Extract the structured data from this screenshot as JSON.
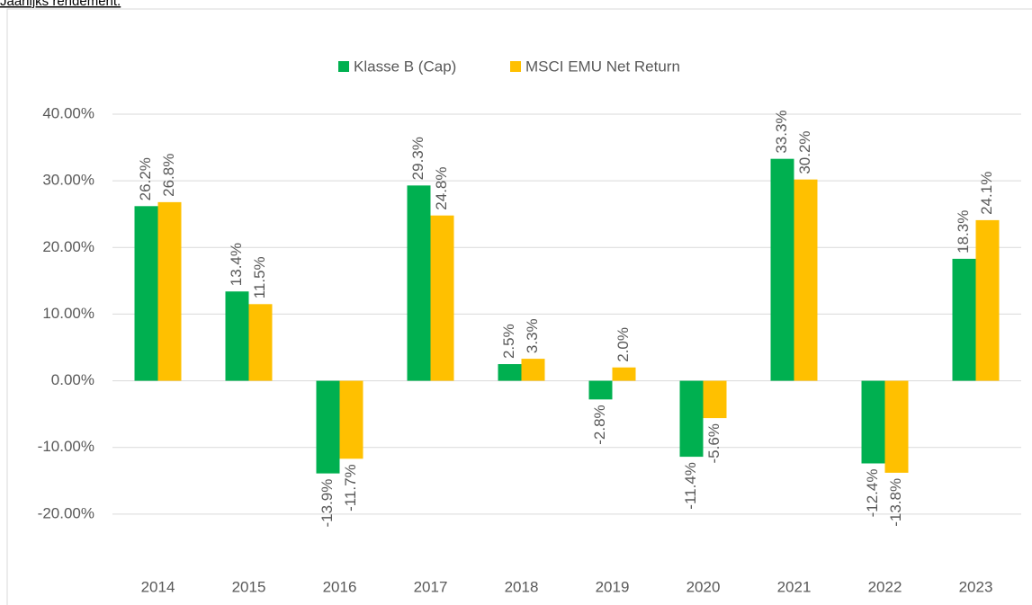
{
  "chart_data": {
    "type": "bar",
    "title": "Jaarlijks rendement.",
    "categories": [
      "2014",
      "2015",
      "2016",
      "2017",
      "2018",
      "2019",
      "2020",
      "2021",
      "2022",
      "2023"
    ],
    "series": [
      {
        "name": "Klasse B (Cap)",
        "color": "#00b050",
        "values": [
          26.2,
          13.4,
          -13.9,
          29.3,
          2.5,
          -2.8,
          -11.4,
          33.3,
          -12.4,
          18.3
        ],
        "value_labels": [
          "26.2%",
          "13.4%",
          "-13.9%",
          "29.3%",
          "2.5%",
          "-2.8%",
          "-11.4%",
          "33.3%",
          "-12.4%",
          "18.3%"
        ]
      },
      {
        "name": "MSCI EMU Net Return",
        "color": "#ffc000",
        "values": [
          26.8,
          11.5,
          -11.7,
          24.8,
          3.3,
          2.0,
          -5.6,
          30.2,
          -13.8,
          24.1
        ],
        "value_labels": [
          "26.8%",
          "11.5%",
          "-11.7%",
          "24.8%",
          "3.3%",
          "2.0%",
          "-5.6%",
          "30.2%",
          "-13.8%",
          "24.1%"
        ]
      }
    ],
    "ylim": [
      -30,
      40
    ],
    "yticks": [
      {
        "value": -20,
        "label": "-20.00%"
      },
      {
        "value": -10,
        "label": "-10.00%"
      },
      {
        "value": 0,
        "label": "0.00%"
      },
      {
        "value": 10,
        "label": "10.00%"
      },
      {
        "value": 20,
        "label": "20.00%"
      },
      {
        "value": 30,
        "label": "30.00%"
      },
      {
        "value": 40,
        "label": "40.00%"
      }
    ],
    "grid": true,
    "legend": "top"
  }
}
